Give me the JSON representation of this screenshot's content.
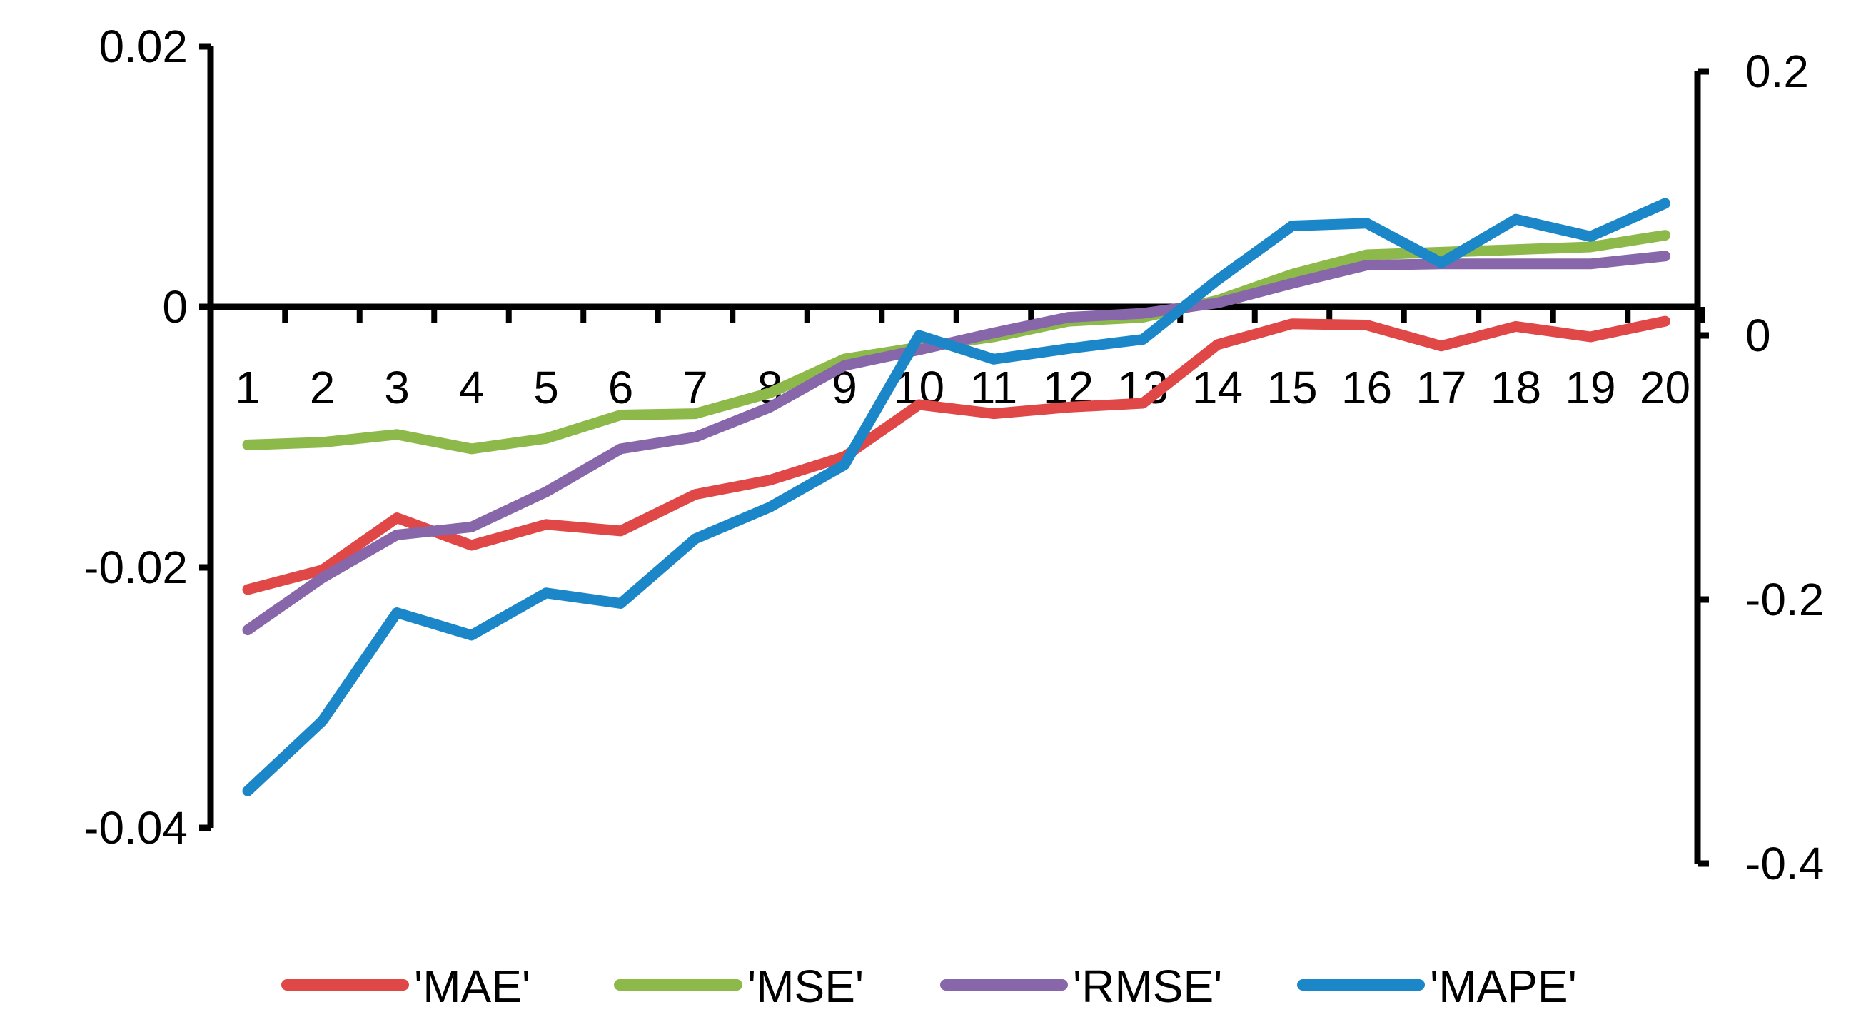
{
  "chart_data": {
    "type": "line",
    "categories": [
      "1",
      "2",
      "3",
      "4",
      "5",
      "6",
      "7",
      "8",
      "9",
      "10",
      "11",
      "12",
      "13",
      "14",
      "15",
      "16",
      "17",
      "18",
      "19",
      "20"
    ],
    "y_left": {
      "range": [
        -0.04,
        0.02
      ],
      "ticks": [
        0.02,
        0,
        -0.02,
        -0.04
      ],
      "tick_labels": [
        "0.02",
        "0",
        "-0.02",
        "-0.04"
      ]
    },
    "y_right": {
      "range": [
        -0.4,
        0.2
      ],
      "ticks": [
        0.2,
        0,
        -0.2,
        -0.4
      ],
      "tick_labels": [
        "0.2",
        "0",
        "-0.2",
        "-0.4"
      ]
    },
    "series": [
      {
        "name": "'MAE'",
        "color": "#E04848",
        "axis": "left",
        "values": [
          -0.0217,
          -0.0202,
          -0.0162,
          -0.0183,
          -0.0167,
          -0.0172,
          -0.0144,
          -0.0133,
          -0.0115,
          -0.0075,
          -0.0082,
          -0.0077,
          -0.0074,
          -0.0029,
          -0.0013,
          -0.0014,
          -0.003,
          -0.0015,
          -0.0023,
          -0.0011
        ]
      },
      {
        "name": "'MSE'",
        "color": "#8DB94A",
        "axis": "left",
        "values": [
          -0.0106,
          -0.0104,
          -0.0098,
          -0.0109,
          -0.0101,
          -0.0083,
          -0.0082,
          -0.0066,
          -0.004,
          -0.0031,
          -0.0023,
          -0.0011,
          -0.0008,
          0.0005,
          0.0025,
          0.004,
          0.0042,
          0.0044,
          0.0046,
          0.0055
        ]
      },
      {
        "name": "'RMSE'",
        "color": "#8767AA",
        "axis": "left",
        "values": [
          -0.0248,
          -0.0208,
          -0.0175,
          -0.0169,
          -0.0142,
          -0.0109,
          -0.01,
          -0.0077,
          -0.0045,
          -0.0033,
          -0.002,
          -0.0008,
          -0.0005,
          0.0003,
          0.0018,
          0.0032,
          0.0033,
          0.0033,
          0.0033,
          0.0039
        ]
      },
      {
        "name": "'MAPE'",
        "color": "#1B87C8",
        "axis": "right",
        "values": [
          -0.345,
          -0.292,
          -0.21,
          -0.227,
          -0.195,
          -0.203,
          -0.154,
          -0.13,
          -0.098,
          0.0,
          -0.018,
          -0.01,
          -0.003,
          0.042,
          0.083,
          0.085,
          0.055,
          0.088,
          0.075,
          0.1
        ]
      }
    ],
    "legend_position": "bottom",
    "grid": false
  }
}
